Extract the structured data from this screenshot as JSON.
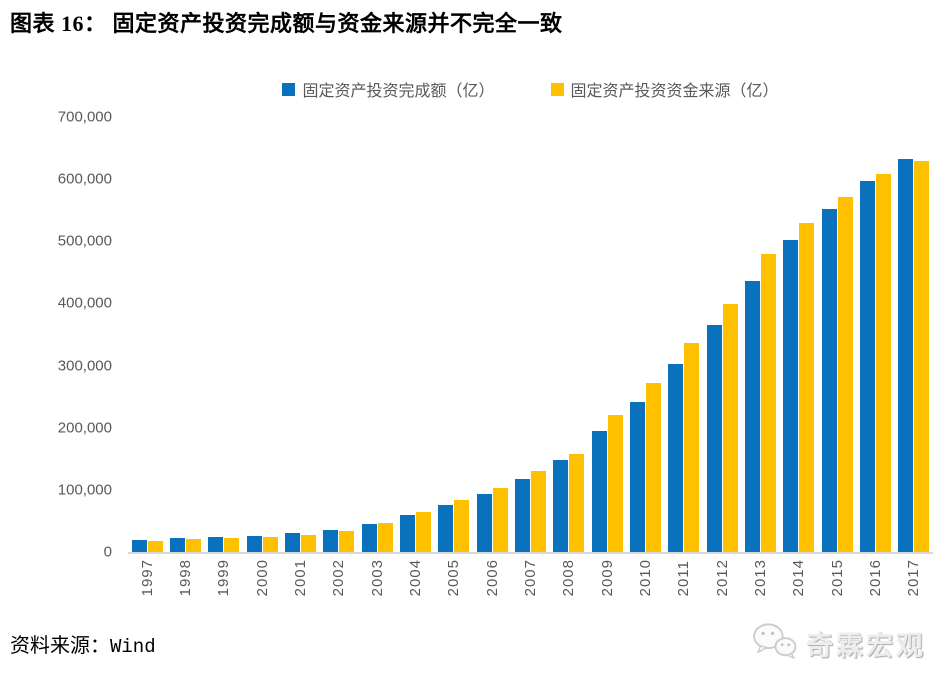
{
  "figure": {
    "title": "图表 16： 固定资产投资完成额与资金来源并不完全一致",
    "source_label": "资料来源：",
    "source_name": "Wind",
    "watermark": "奇霖宏观"
  },
  "colors": {
    "series_completed": "#0A72BC",
    "series_funds": "#FFC000",
    "axis_text": "#595959",
    "axis_line": "#D9D9D9",
    "title_text": "#000000",
    "watermark_gray": "#EDEDED"
  },
  "legend": {
    "items": [
      {
        "label": "固定资产投资完成额（亿）",
        "color": "#0A72BC"
      },
      {
        "label": "固定资产投资资金来源（亿）",
        "color": "#FFC000"
      }
    ]
  },
  "chart_data": {
    "type": "bar",
    "title": "图表 16： 固定资产投资完成额与资金来源并不完全一致",
    "categories": [
      "1997",
      "1998",
      "1999",
      "2000",
      "2001",
      "2002",
      "2003",
      "2004",
      "2005",
      "2006",
      "2007",
      "2008",
      "2009",
      "2010",
      "2011",
      "2012",
      "2013",
      "2014",
      "2015",
      "2016",
      "2017"
    ],
    "series": [
      {
        "name": "固定资产投资完成额（亿）",
        "color": "#0A72BC",
        "values": [
          19200,
          22500,
          23700,
          26200,
          30000,
          35500,
          45800,
          59000,
          75000,
          93400,
          117500,
          148700,
          194000,
          241400,
          302400,
          364800,
          436500,
          502000,
          551600,
          596500,
          632000
        ]
      },
      {
        "name": "固定资产投资资金来源（亿）",
        "color": "#FFC000",
        "values": [
          17000,
          21000,
          22500,
          24500,
          28000,
          34000,
          46000,
          64500,
          83000,
          102500,
          130500,
          158000,
          220000,
          272000,
          337000,
          399000,
          480000,
          530000,
          572000,
          608000,
          629000
        ]
      }
    ],
    "xlabel": "",
    "ylabel": "",
    "ylim": [
      0,
      700000
    ],
    "ytick_interval": 100000,
    "yticks": [
      "700,000",
      "600,000",
      "500,000",
      "400,000",
      "300,000",
      "200,000",
      "100,000",
      "0"
    ],
    "grid": false,
    "legend_position": "top",
    "x_tick_rotation": -90
  }
}
